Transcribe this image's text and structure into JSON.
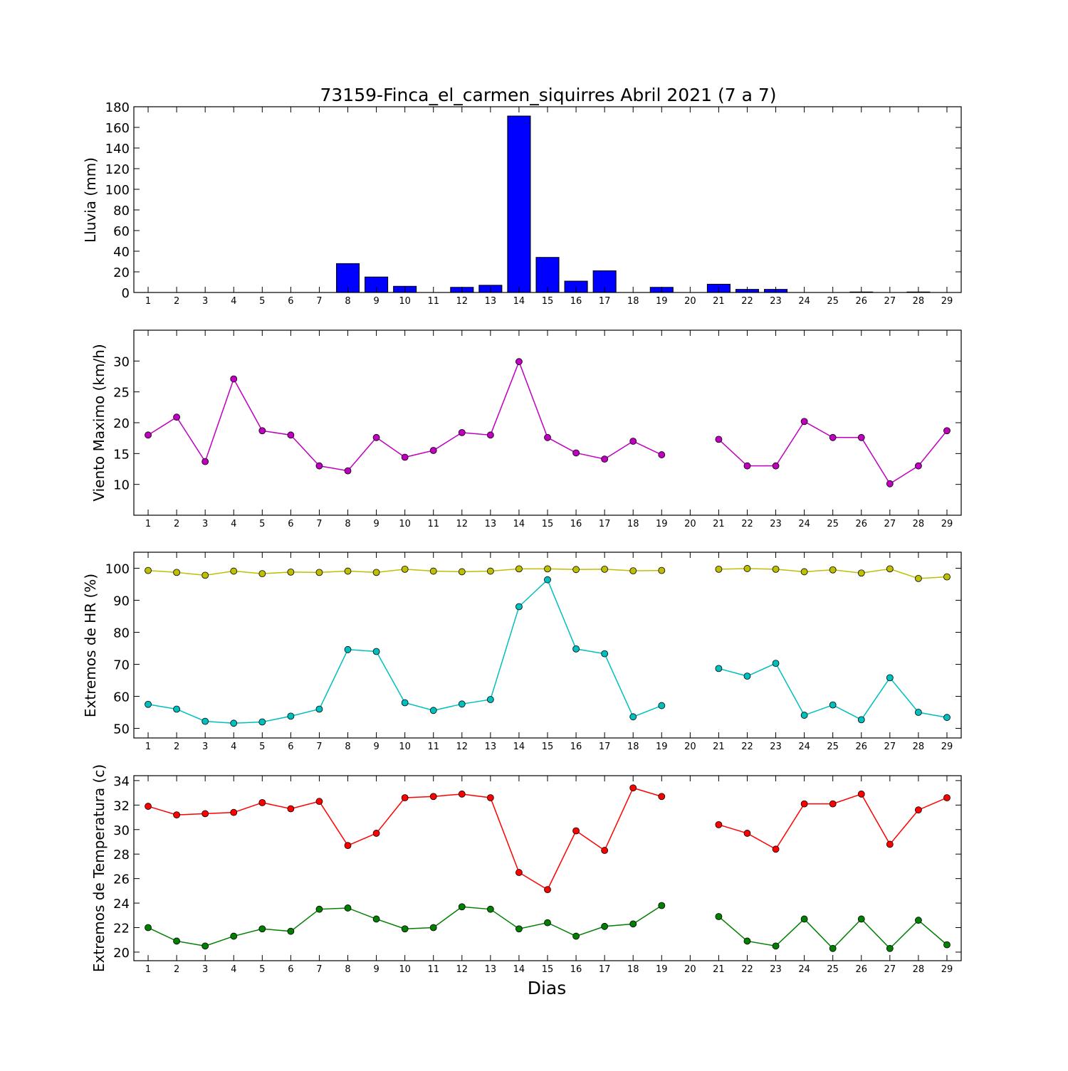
{
  "chart_data": [
    {
      "type": "bar",
      "title": "73159-Finca_el_carmen_siquirres Abril 2021  (7 a 7)",
      "ylabel": "Lluvia (mm)",
      "xlabel": "",
      "x": [
        1,
        2,
        3,
        4,
        5,
        6,
        7,
        8,
        9,
        10,
        11,
        12,
        13,
        14,
        15,
        16,
        17,
        18,
        19,
        20,
        21,
        22,
        23,
        24,
        25,
        26,
        27,
        28,
        29
      ],
      "values": [
        0,
        0,
        0,
        0,
        0,
        0,
        0,
        28,
        15,
        6,
        0,
        5,
        7,
        171,
        34,
        11,
        21,
        0,
        5,
        null,
        8,
        3,
        3,
        0,
        0,
        0.5,
        0,
        0.5,
        0
      ],
      "ylim": [
        0,
        180
      ],
      "yticks": [
        0,
        20,
        40,
        60,
        80,
        100,
        120,
        140,
        160,
        180
      ],
      "color": "#0000ff"
    },
    {
      "type": "line",
      "title": "",
      "ylabel": "Viento Maximo (km/h)",
      "xlabel": "",
      "x": [
        1,
        2,
        3,
        4,
        5,
        6,
        7,
        8,
        9,
        10,
        11,
        12,
        13,
        14,
        15,
        16,
        17,
        18,
        19,
        20,
        21,
        22,
        23,
        24,
        25,
        26,
        27,
        28,
        29
      ],
      "series": [
        {
          "values": [
            18,
            20.9,
            13.7,
            27.1,
            18.7,
            18,
            13,
            12.2,
            17.6,
            14.4,
            15.5,
            18.4,
            18,
            29.9,
            17.6,
            15.1,
            14.1,
            17,
            14.8,
            null,
            17.3,
            13,
            13,
            20.2,
            17.6,
            17.6,
            10.1,
            13,
            18.7
          ],
          "color": "#bf00bf"
        }
      ],
      "ylim": [
        5,
        35
      ],
      "yticks": [
        10,
        15,
        20,
        25,
        30
      ]
    },
    {
      "type": "line",
      "title": "",
      "ylabel": "Extremos de HR (%)",
      "xlabel": "",
      "x": [
        1,
        2,
        3,
        4,
        5,
        6,
        7,
        8,
        9,
        10,
        11,
        12,
        13,
        14,
        15,
        16,
        17,
        18,
        19,
        20,
        21,
        22,
        23,
        24,
        25,
        26,
        27,
        28,
        29
      ],
      "series": [
        {
          "values": [
            99.3,
            98.7,
            97.8,
            99.1,
            98.3,
            98.8,
            98.7,
            99.1,
            98.7,
            99.7,
            99.1,
            98.9,
            99.1,
            99.8,
            99.8,
            99.6,
            99.7,
            99.2,
            99.3,
            null,
            99.7,
            99.9,
            99.7,
            98.9,
            99.5,
            98.5,
            99.8,
            96.8,
            97.3
          ],
          "color": "#bfbf00"
        },
        {
          "values": [
            57.5,
            56,
            52.2,
            51.6,
            52,
            53.8,
            56,
            74.6,
            74,
            58,
            55.6,
            57.6,
            59,
            88,
            96.4,
            74.8,
            73.3,
            53.6,
            57.1,
            null,
            68.7,
            66.3,
            70.3,
            54.1,
            57.3,
            52.7,
            65.8,
            55,
            53.4
          ],
          "color": "#00bfbf"
        }
      ],
      "ylim": [
        47,
        105
      ],
      "yticks": [
        50,
        60,
        70,
        80,
        90,
        100
      ]
    },
    {
      "type": "line",
      "title": "",
      "ylabel": "Extremos de Temperatura (c)",
      "xlabel": "Dias",
      "x": [
        1,
        2,
        3,
        4,
        5,
        6,
        7,
        8,
        9,
        10,
        11,
        12,
        13,
        14,
        15,
        16,
        17,
        18,
        19,
        20,
        21,
        22,
        23,
        24,
        25,
        26,
        27,
        28,
        29
      ],
      "series": [
        {
          "values": [
            31.9,
            31.2,
            31.3,
            31.4,
            32.2,
            31.7,
            32.3,
            28.7,
            29.7,
            32.6,
            32.7,
            32.9,
            32.6,
            26.5,
            25.1,
            29.9,
            28.3,
            33.4,
            32.7,
            null,
            30.4,
            29.7,
            28.4,
            32.1,
            32.1,
            32.9,
            28.8,
            31.6,
            32.6
          ],
          "color": "#ff0000"
        },
        {
          "values": [
            22,
            20.9,
            20.5,
            21.3,
            21.9,
            21.7,
            23.5,
            23.6,
            22.7,
            21.9,
            22,
            23.7,
            23.5,
            21.9,
            22.4,
            21.3,
            22.1,
            22.3,
            23.8,
            null,
            22.9,
            20.9,
            20.5,
            22.7,
            20.3,
            22.7,
            20.3,
            22.6,
            20.6
          ],
          "color": "#007f00"
        }
      ],
      "ylim": [
        19.3,
        34.4
      ],
      "yticks": [
        20,
        22,
        24,
        26,
        28,
        30,
        32,
        34
      ]
    }
  ]
}
